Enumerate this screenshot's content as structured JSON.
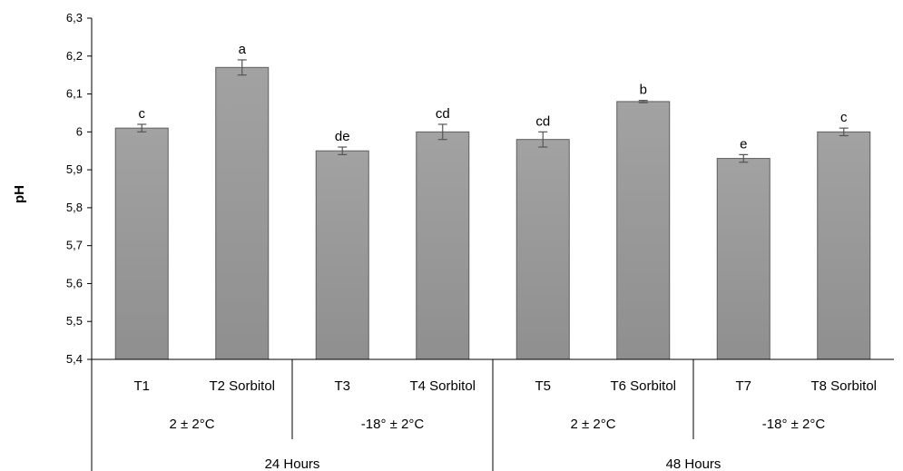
{
  "chart_data": {
    "type": "bar",
    "title": "",
    "xlabel": "",
    "ylabel": "pH",
    "ylim": [
      5.4,
      6.3
    ],
    "ytick_step": 0.1,
    "ytick_labels": [
      "5,4",
      "5,5",
      "5,6",
      "5,7",
      "5,8",
      "5,9",
      "6",
      "6,1",
      "6,2",
      "6,3"
    ],
    "grid": false,
    "legend": "none",
    "bar_color": "#9a9a9a",
    "categories": [
      "T1",
      "T2 Sorbitol",
      "T3",
      "T4 Sorbitol",
      "T5",
      "T6 Sorbitol",
      "T7",
      "T8 Sorbitol"
    ],
    "values": [
      6.01,
      6.17,
      5.95,
      6.0,
      5.98,
      6.08,
      5.93,
      6.0
    ],
    "errors": [
      0.01,
      0.02,
      0.01,
      0.02,
      0.02,
      0.003,
      0.01,
      0.01
    ],
    "significance_letters": [
      "c",
      "a",
      "de",
      "cd",
      "cd",
      "b",
      "e",
      "c"
    ],
    "group_level_1": [
      "2 ± 2°C",
      "-18° ± 2°C",
      "2 ± 2°C",
      "-18° ± 2°C"
    ],
    "group_level_2": [
      "24 Hours",
      "48 Hours"
    ]
  }
}
